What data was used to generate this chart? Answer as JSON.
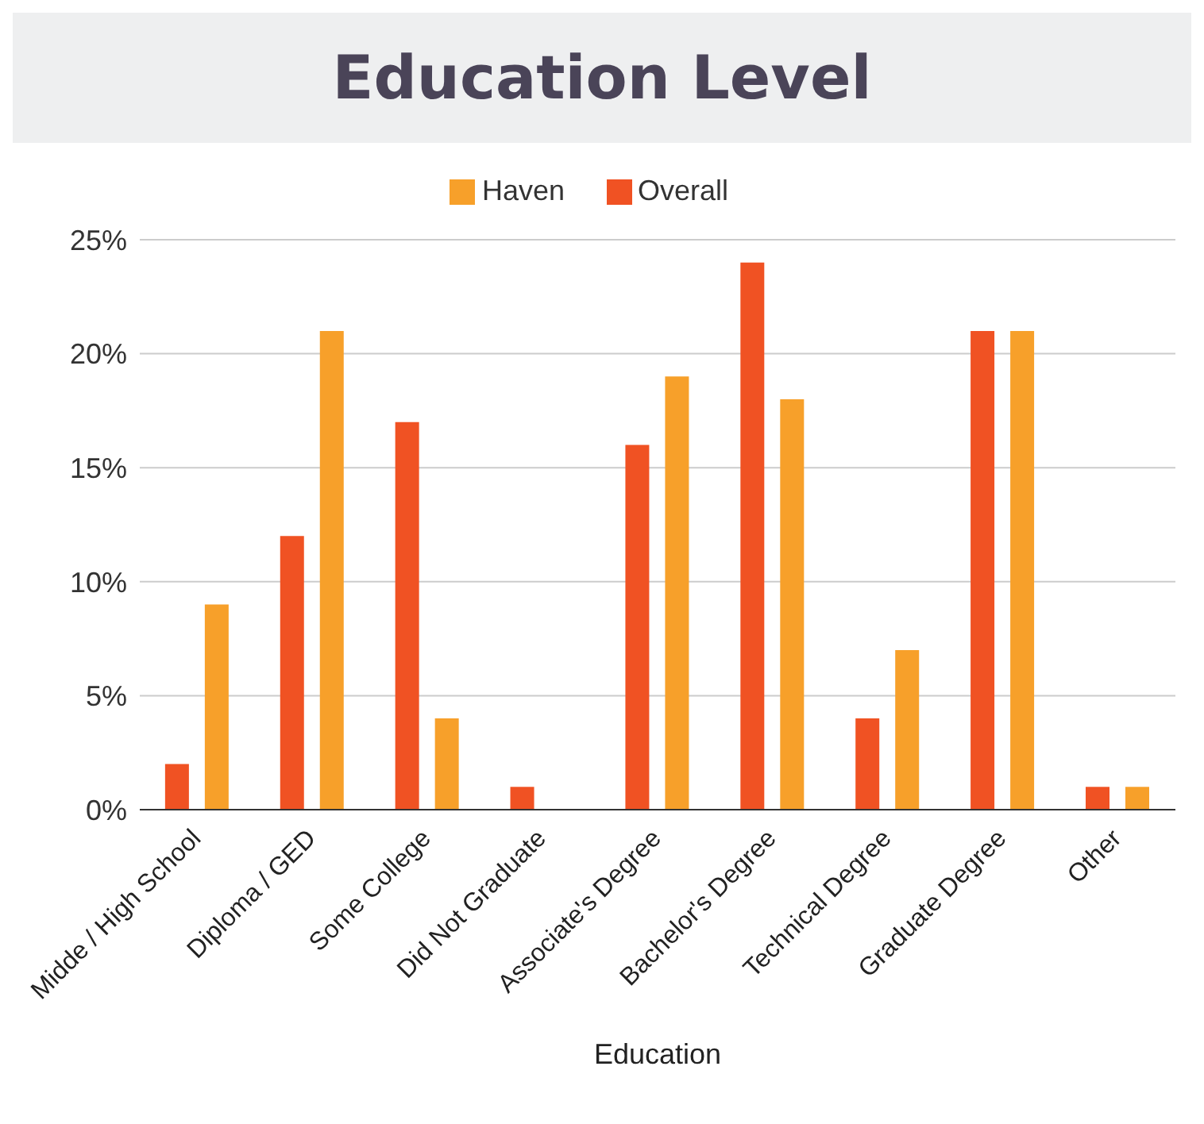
{
  "chart_data": {
    "type": "bar",
    "title": "Education Level",
    "xlabel": "Education",
    "categories": [
      "Midde / High School",
      "Diploma / GED",
      "Some College",
      "Did Not Graduate",
      "Associate's Degree",
      "Bachelor's Degree",
      "Technical Degree",
      "Graduate Degree",
      "Other"
    ],
    "series": [
      {
        "name": "Overall",
        "color": "#f05223",
        "values": [
          2,
          12,
          17,
          1,
          16,
          24,
          4,
          21,
          1
        ]
      },
      {
        "name": "Haven",
        "color": "#f7a02a",
        "values": [
          9,
          21,
          4,
          0,
          19,
          18,
          7,
          21,
          1
        ]
      }
    ],
    "ylim": [
      0,
      25
    ],
    "yticks": [
      {
        "value": 0,
        "label": "0%"
      },
      {
        "value": 5,
        "label": "5%"
      },
      {
        "value": 10,
        "label": "10%"
      },
      {
        "value": 15,
        "label": "15%"
      },
      {
        "value": 20,
        "label": "20%"
      },
      {
        "value": 25,
        "label": "25%"
      }
    ],
    "grid": "y",
    "legend": "top"
  }
}
